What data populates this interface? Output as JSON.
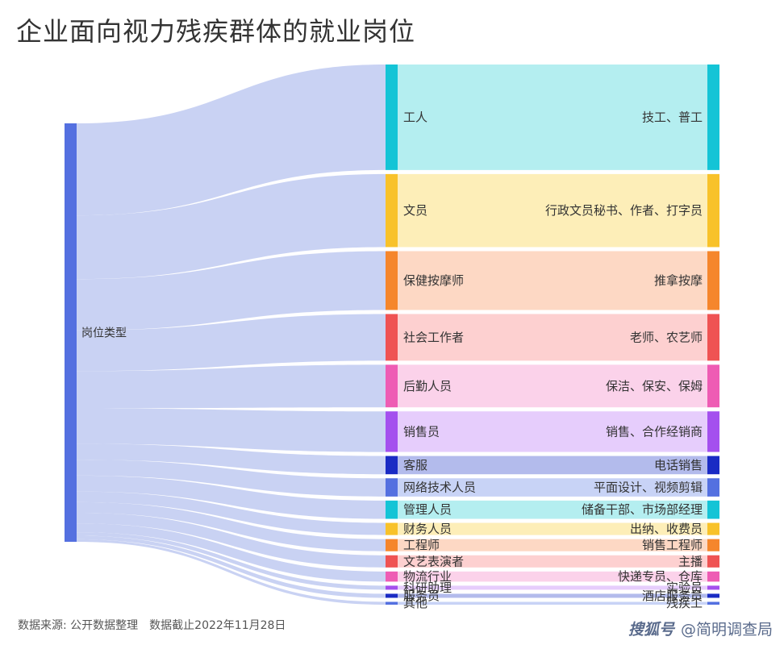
{
  "chart_data": {
    "type": "sankey",
    "title": "企业面向视力残疾群体的就业岗位",
    "source_node": {
      "label": "岗位类型",
      "color": "#5470e0"
    },
    "categories": [
      {
        "name": "工人",
        "example": "技工、普工",
        "value": 26,
        "color": "#14c4d6",
        "fill": "#b4eef0"
      },
      {
        "name": "文员",
        "example": "行政文员秘书、作者、打字员",
        "value": 18,
        "color": "#f8c22a",
        "fill": "#fdeeb8"
      },
      {
        "name": "保健按摩师",
        "example": "推拿按摩",
        "value": 14.5,
        "color": "#f5862c",
        "fill": "#fdd8c4"
      },
      {
        "name": "社会工作者",
        "example": "老师、农艺师",
        "value": 11.5,
        "color": "#ef5353",
        "fill": "#fdd0d0"
      },
      {
        "name": "后勤人员",
        "example": "保洁、保安、保姆",
        "value": 10.5,
        "color": "#ee5cb4",
        "fill": "#fbd2ea"
      },
      {
        "name": "销售员",
        "example": "销售、合作经销商",
        "value": 10,
        "color": "#a450ee",
        "fill": "#e6cdfc"
      },
      {
        "name": "客服",
        "example": "电话销售",
        "value": 4.5,
        "color": "#1a2bc4",
        "fill": "#b3bbec"
      },
      {
        "name": "网络技术人员",
        "example": "平面设计、视频剪辑",
        "value": 4.5,
        "color": "#5470e0",
        "fill": "#c8d3f6"
      },
      {
        "name": "管理人员",
        "example": "储备干部、市场部经理",
        "value": 4.5,
        "color": "#14c4d6",
        "fill": "#b4eef0"
      },
      {
        "name": "财务人员",
        "example": "出纳、收费员",
        "value": 3,
        "color": "#f8c22a",
        "fill": "#fdeeb8"
      },
      {
        "name": "工程师",
        "example": "销售工程师",
        "value": 3,
        "color": "#f5862c",
        "fill": "#fdd8c4"
      },
      {
        "name": "文艺表演者",
        "example": "主播",
        "value": 3,
        "color": "#ef5353",
        "fill": "#fdd0d0"
      },
      {
        "name": "物流行业",
        "example": "快递专员、仓库",
        "value": 2.5,
        "color": "#ee5cb4",
        "fill": "#fbd2ea"
      },
      {
        "name": "科研助理",
        "example": "实验员",
        "value": 1,
        "color": "#a450ee",
        "fill": "#e6cdfc"
      },
      {
        "name": "服务员",
        "example": "酒店服务员",
        "value": 1,
        "color": "#1a2bc4",
        "fill": "#b3bbec"
      },
      {
        "name": "其他",
        "example": "残疾工",
        "value": 0.7,
        "color": "#5470e0",
        "fill": "#c8d3f6"
      }
    ],
    "link_color": "#c6d0f2"
  },
  "footer": {
    "source": "数据来源: 公开数据整理",
    "cutoff": "数据截止2022年11月28日"
  },
  "watermark": {
    "logo": "搜狐号",
    "account": "@简明调查局"
  }
}
